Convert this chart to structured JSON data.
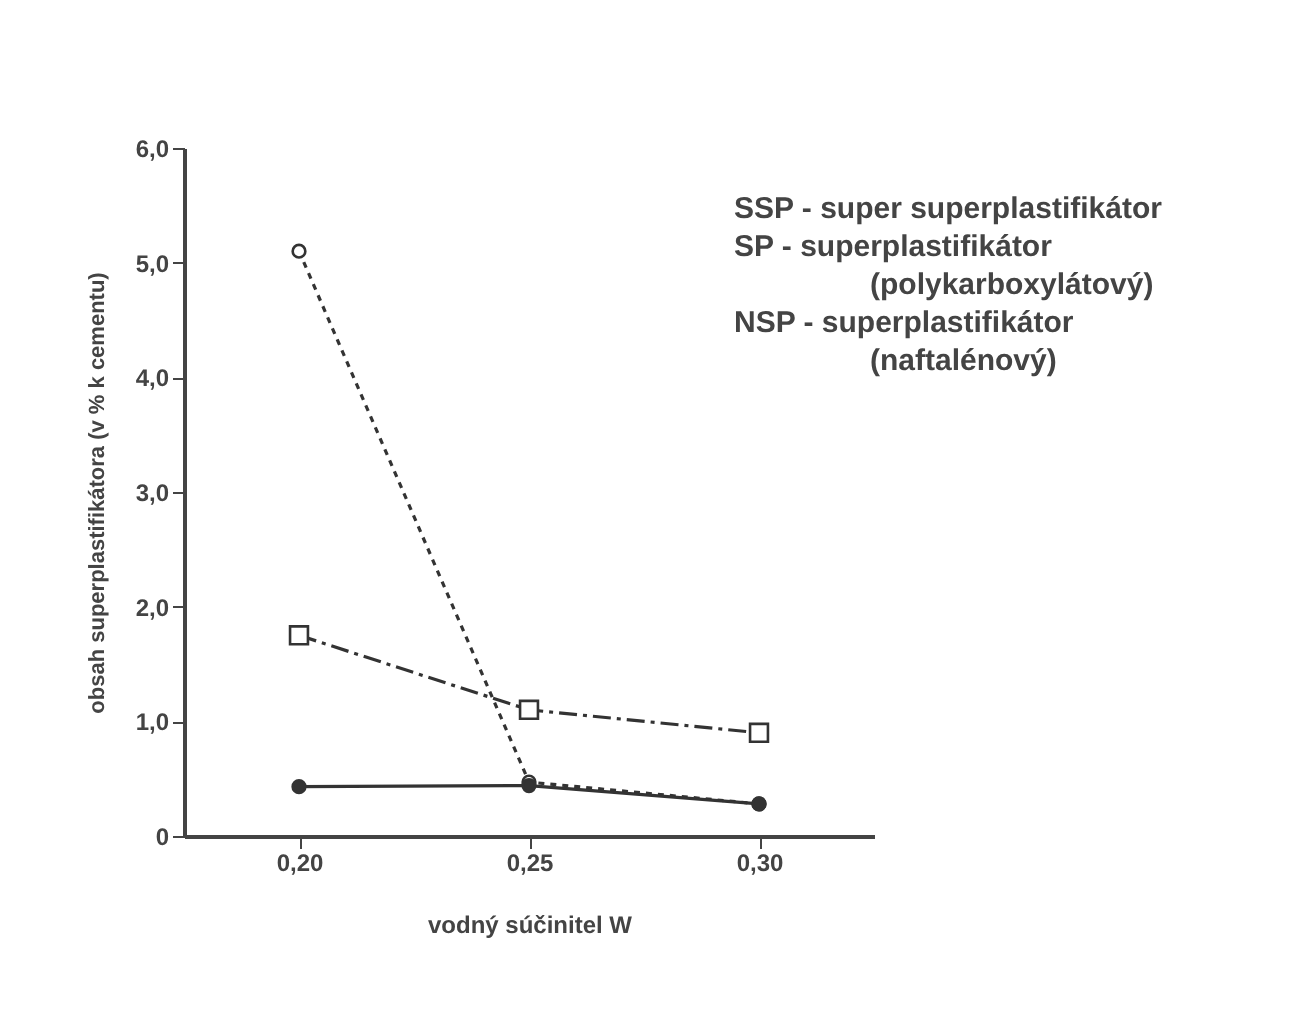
{
  "chart_data": {
    "type": "line",
    "xlabel": "vodný súčinitel W",
    "ylabel": "obsah superplastifikátora (v % k cementu)",
    "x": [
      0.2,
      0.25,
      0.3
    ],
    "xlim": [
      0.175,
      0.325
    ],
    "xticks": [
      {
        "value": 0.2,
        "label": "0,20"
      },
      {
        "value": 0.25,
        "label": "0,25"
      },
      {
        "value": 0.3,
        "label": "0,30"
      }
    ],
    "ylim": [
      0,
      6
    ],
    "yticks": [
      0,
      {
        "value": 1,
        "label": "1,0"
      },
      {
        "value": 2,
        "label": "2,0"
      },
      {
        "value": 3,
        "label": "3,0"
      },
      {
        "value": 4,
        "label": "4,0"
      },
      {
        "value": 5,
        "label": "5,0"
      },
      {
        "value": 6,
        "label": "6,0"
      }
    ],
    "series": [
      {
        "color": "#333333",
        "marker": "circle",
        "line_style": "dotted",
        "values": [
          5.1,
          0.47,
          0.28
        ]
      },
      {
        "color": "#333333",
        "marker": "square",
        "line_style": "dashed",
        "values": [
          1.75,
          1.1,
          0.9
        ]
      },
      {
        "color": "#333333",
        "marker": "circle",
        "line_style": "solid",
        "values": [
          0.43,
          0.44,
          0.28
        ]
      }
    ],
    "annotations": [
      "SSP - super superplastifikátor",
      "SP - superplastifikátor (polykarboxylátový)",
      "NSP - superplastifikátor (naftalénový)"
    ]
  }
}
